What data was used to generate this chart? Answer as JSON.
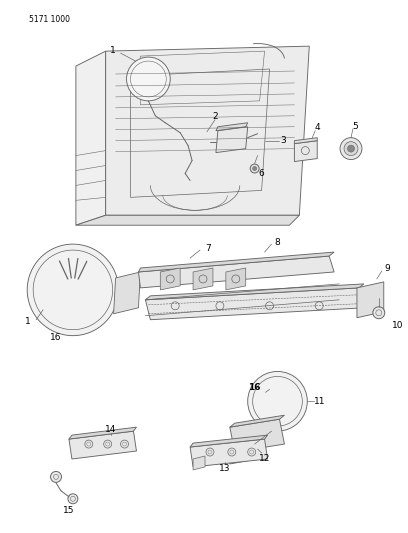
{
  "title": "5171 1000",
  "bg_color": "#ffffff",
  "lc": "#666666",
  "lc2": "#888888",
  "fig_width": 4.08,
  "fig_height": 5.33,
  "dpi": 100,
  "label_fontsize": 6.5
}
